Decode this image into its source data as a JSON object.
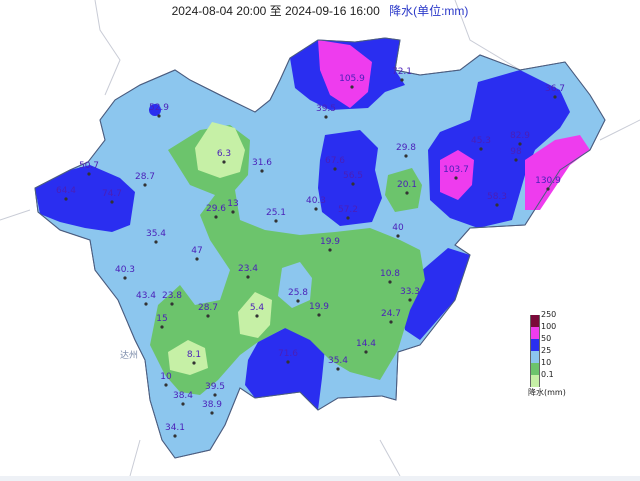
{
  "title": {
    "range": "2024-08-04 20:00 至 2024-09-16 16:00",
    "unit": "降水(单位:mm)"
  },
  "colors": {
    "background": "#eef1f6",
    "outside_land": "#ffffff",
    "class_0_1": "#c6f0a6",
    "class_10": "#6cc46c",
    "class_25": "#8cc6ee",
    "class_50": "#2a2ef0",
    "class_100": "#ee3cee",
    "class_250": "#7a0a3a",
    "station_label": "#4a1fb8",
    "city_label": "#7a8aa8"
  },
  "legend": {
    "caption": "降水(mm)",
    "levels": [
      "250",
      "100",
      "50",
      "25",
      "10",
      "0.1"
    ]
  },
  "city_label": "达州",
  "stations": [
    {
      "value": "105.9"
    },
    {
      "value": "72.1"
    },
    {
      "value": "36.7"
    },
    {
      "value": "52.9"
    },
    {
      "value": "39.5"
    },
    {
      "value": "45.3"
    },
    {
      "value": "82.9"
    },
    {
      "value": "98"
    },
    {
      "value": "6.3"
    },
    {
      "value": "31.6"
    },
    {
      "value": "67.6"
    },
    {
      "value": "29.8"
    },
    {
      "value": "50.7"
    },
    {
      "value": "28.7"
    },
    {
      "value": "56.5"
    },
    {
      "value": "103.7"
    },
    {
      "value": "130.9"
    },
    {
      "value": "64.4"
    },
    {
      "value": "74.7"
    },
    {
      "value": "20.1"
    },
    {
      "value": "58.3"
    },
    {
      "value": "40.3"
    },
    {
      "value": "29.6"
    },
    {
      "value": "13"
    },
    {
      "value": "25.1"
    },
    {
      "value": "57.2"
    },
    {
      "value": "35.4"
    },
    {
      "value": "40"
    },
    {
      "value": "47"
    },
    {
      "value": "19.9"
    },
    {
      "value": "40.3"
    },
    {
      "value": "23.4"
    },
    {
      "value": "10.8"
    },
    {
      "value": "43.4"
    },
    {
      "value": "23.8"
    },
    {
      "value": "25.8"
    },
    {
      "value": "33.3"
    },
    {
      "value": "28.7"
    },
    {
      "value": "5.4"
    },
    {
      "value": "19.9"
    },
    {
      "value": "15"
    },
    {
      "value": "24.7"
    },
    {
      "value": "71.6"
    },
    {
      "value": "14.4"
    },
    {
      "value": "8.1"
    },
    {
      "value": "35.4"
    },
    {
      "value": "10"
    },
    {
      "value": "39.5"
    },
    {
      "value": "38.4"
    },
    {
      "value": "38.9"
    },
    {
      "value": "34.1"
    }
  ]
}
